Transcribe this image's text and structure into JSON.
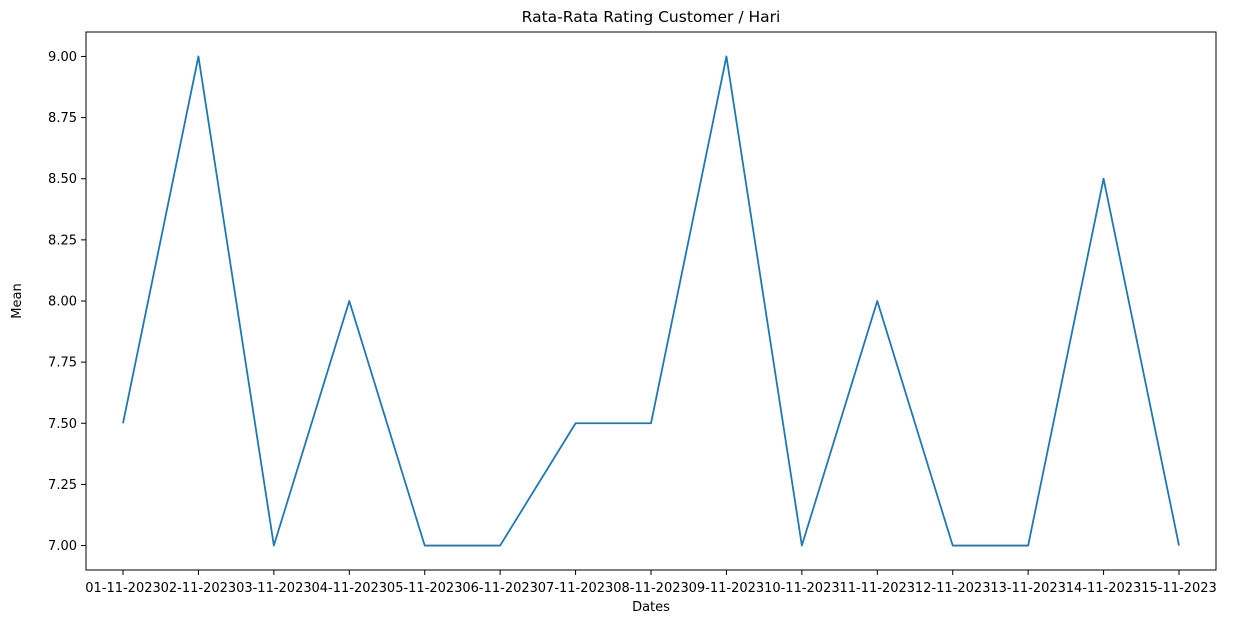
{
  "chart_data": {
    "type": "line",
    "title": "Rata-Rata Rating Customer / Hari",
    "xlabel": "Dates",
    "ylabel": "Mean",
    "categories": [
      "01-11-2023",
      "02-11-2023",
      "03-11-2023",
      "04-11-2023",
      "05-11-2023",
      "06-11-2023",
      "07-11-2023",
      "08-11-2023",
      "09-11-2023",
      "10-11-2023",
      "11-11-2023",
      "12-11-2023",
      "13-11-2023",
      "14-11-2023",
      "15-11-2023"
    ],
    "series": [
      {
        "values": [
          7.5,
          9.0,
          7.0,
          8.0,
          7.0,
          7.0,
          7.5,
          7.5,
          9.0,
          7.0,
          8.0,
          7.0,
          7.0,
          8.5,
          7.0
        ],
        "color": "#1f77b4"
      }
    ],
    "ylim": [
      6.9,
      9.1
    ],
    "yticks": [
      "7.00",
      "7.25",
      "7.50",
      "7.75",
      "8.00",
      "8.25",
      "8.50",
      "8.75",
      "9.00"
    ],
    "grid": false
  }
}
